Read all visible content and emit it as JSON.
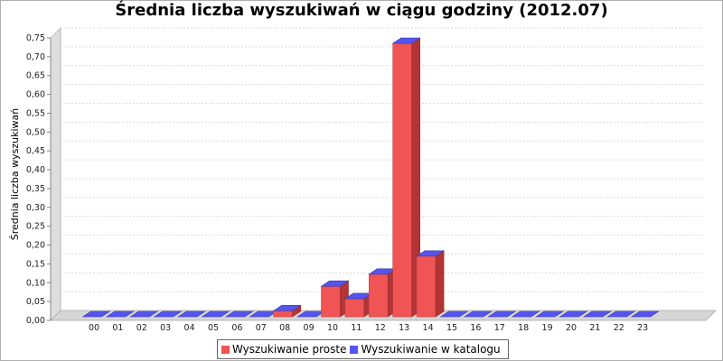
{
  "chart_data": {
    "type": "bar",
    "title": "Średnia liczba wyszukiwań w ciągu godziny (2012.07)",
    "xlabel": "",
    "ylabel": "Średnia liczba wyszukiwań",
    "categories": [
      "00",
      "01",
      "02",
      "03",
      "04",
      "05",
      "06",
      "07",
      "08",
      "09",
      "10",
      "11",
      "12",
      "13",
      "14",
      "15",
      "16",
      "17",
      "18",
      "19",
      "20",
      "21",
      "22",
      "23"
    ],
    "series": [
      {
        "name": "Wyszukiwanie proste",
        "color": "#f05454",
        "values": [
          0,
          0,
          0,
          0,
          0,
          0,
          0,
          0,
          0.016,
          0,
          0.081,
          0.048,
          0.113,
          0.726,
          0.161,
          0,
          0,
          0,
          0,
          0,
          0,
          0,
          0,
          0
        ]
      },
      {
        "name": "Wyszukiwanie w katalogu",
        "color": "#5555ee",
        "values": [
          0,
          0,
          0,
          0,
          0,
          0,
          0,
          0,
          0,
          0,
          0,
          0,
          0,
          0,
          0,
          0,
          0,
          0,
          0,
          0,
          0,
          0,
          0,
          0
        ]
      }
    ],
    "ylim": [
      0,
      0.75
    ],
    "yticks": [
      "0,00",
      "0,05",
      "0,10",
      "0,15",
      "0,20",
      "0,25",
      "0,30",
      "0,35",
      "0,40",
      "0,45",
      "0,50",
      "0,55",
      "0,60",
      "0,65",
      "0,70",
      "0,75"
    ],
    "grid": true,
    "legend_position": "bottom"
  }
}
